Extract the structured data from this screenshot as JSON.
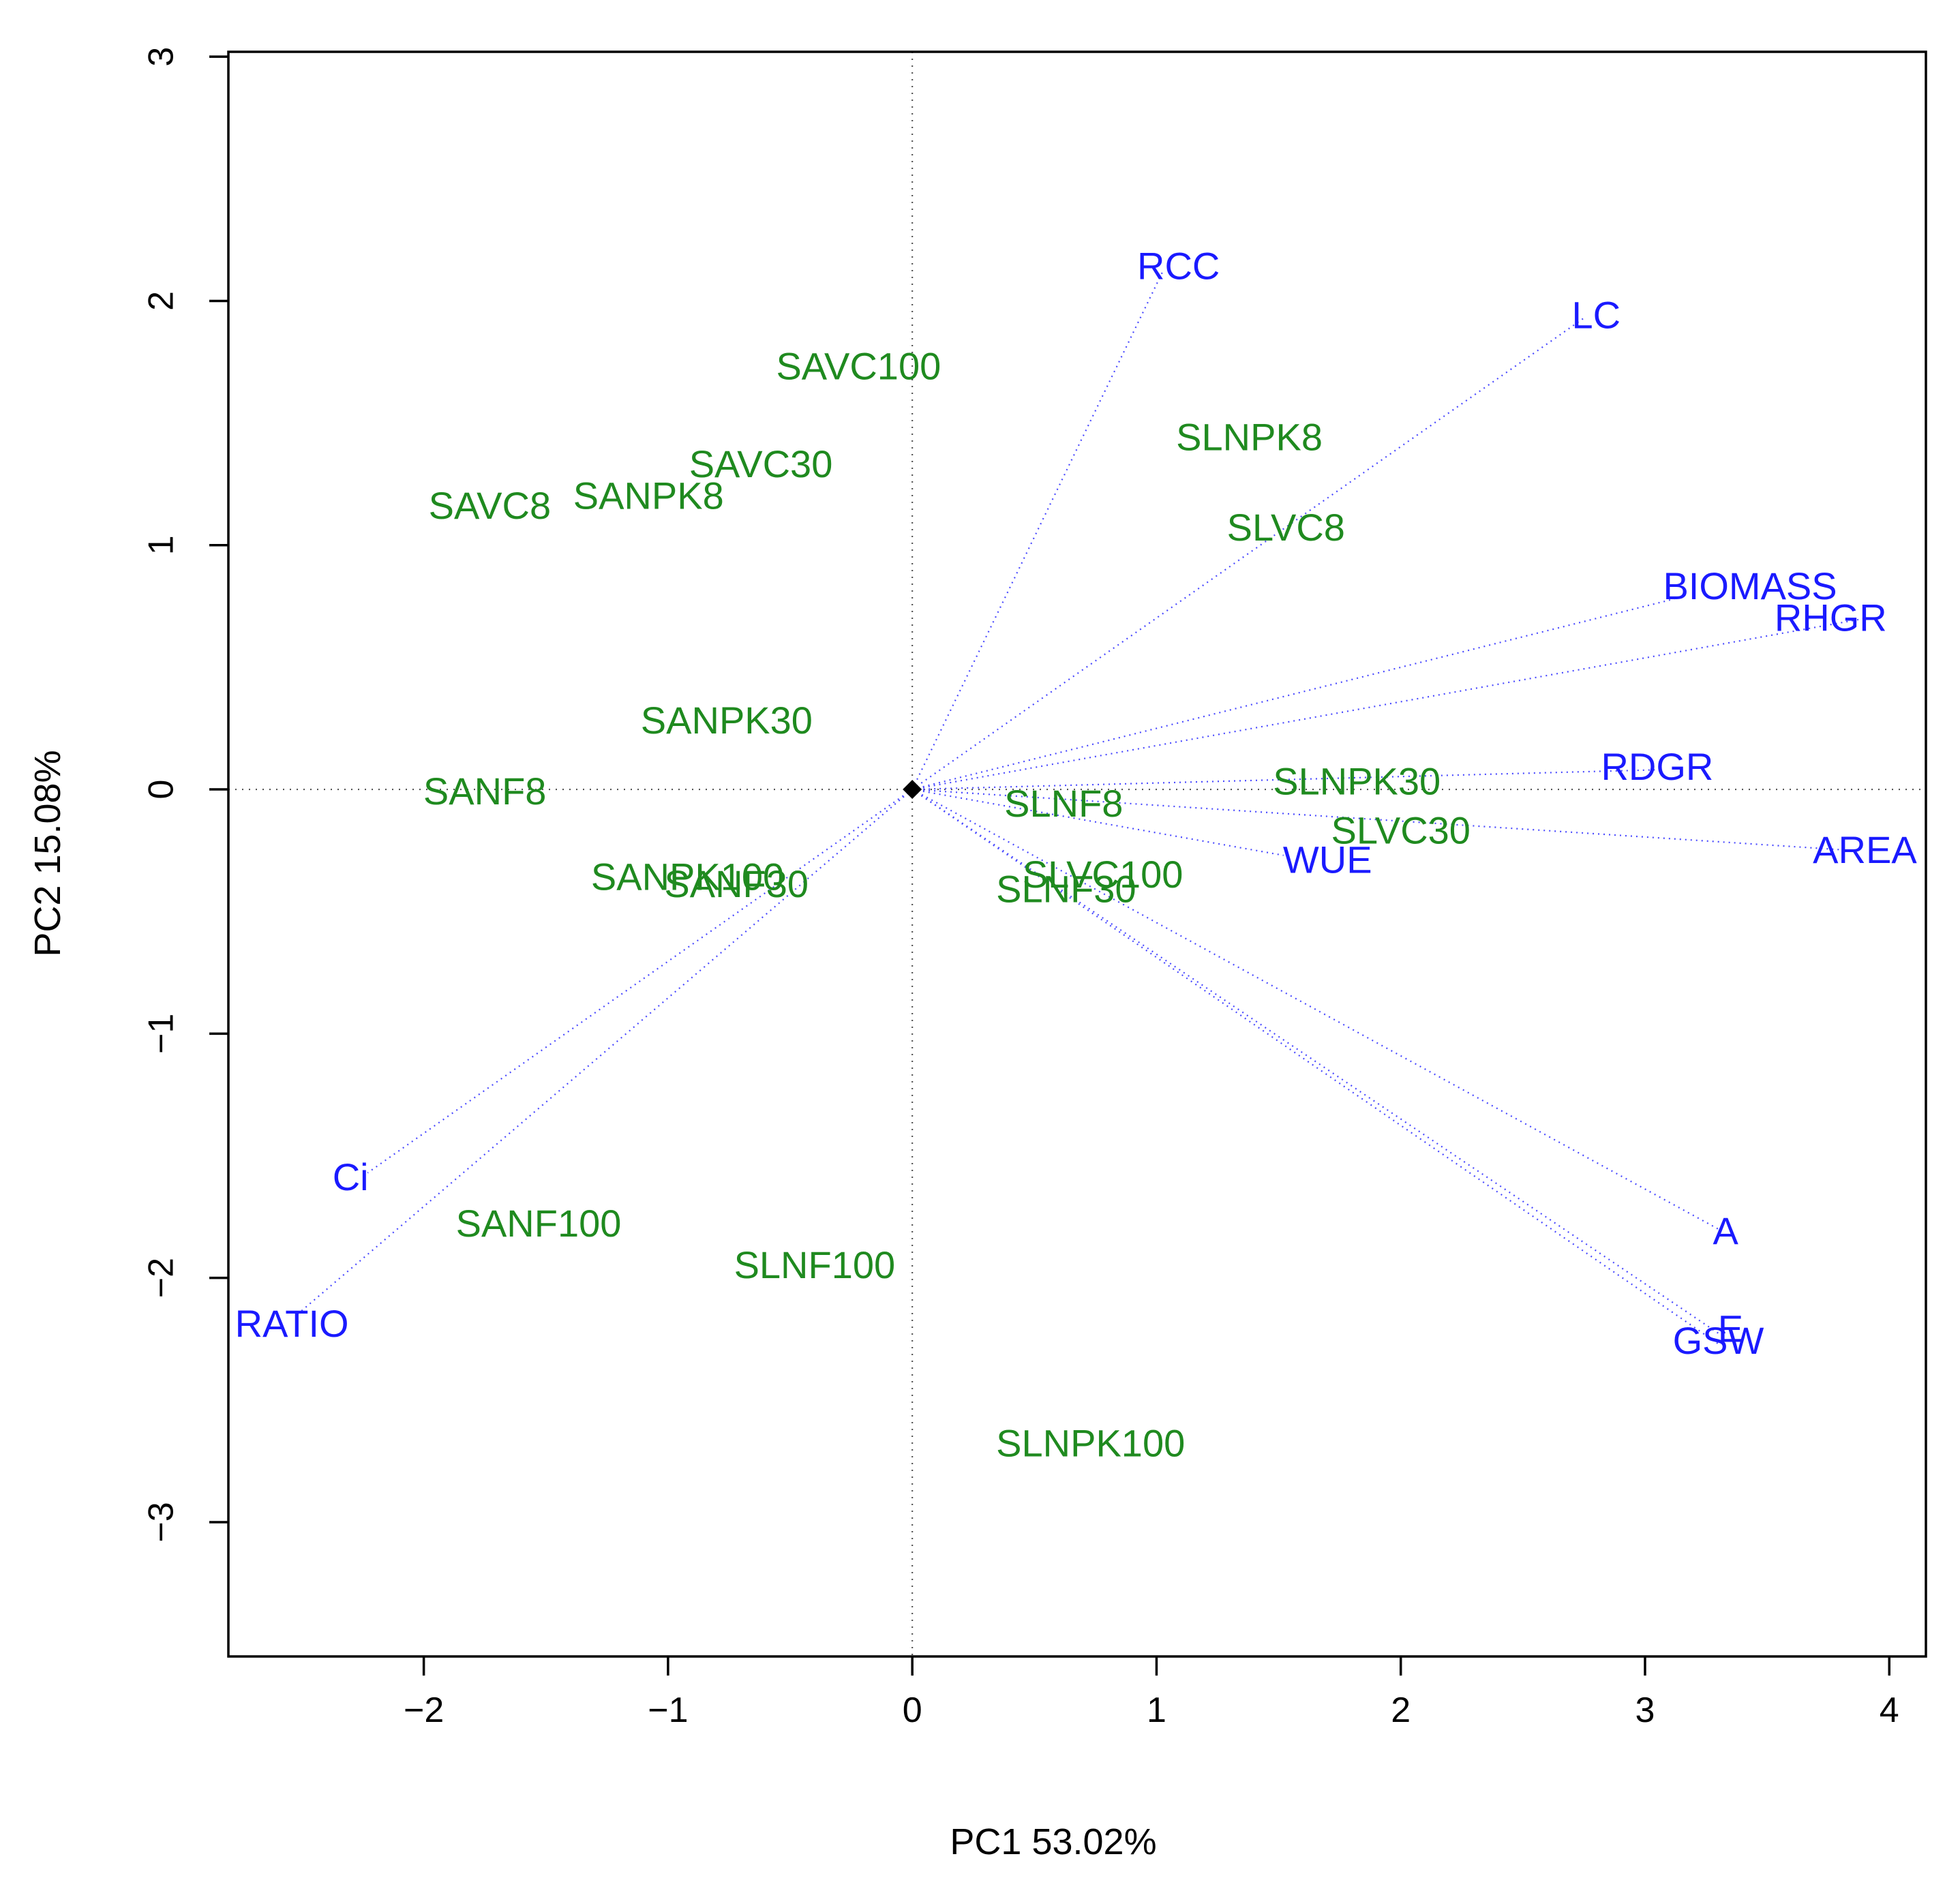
{
  "chart_data": {
    "type": "scatter",
    "subtype": "pca-biplot",
    "title": "",
    "xlabel": "PC1 53.02%",
    "ylabel": "PC2 15.08%",
    "xlim": [
      -2.8,
      4.15
    ],
    "ylim": [
      -3.55,
      3.02
    ],
    "xticks": [
      -2,
      -1,
      0,
      1,
      2,
      3,
      4
    ],
    "yticks": [
      -3,
      -2,
      -1,
      0,
      1,
      2,
      3
    ],
    "reference_lines": {
      "x": 0,
      "y": 0,
      "style": "dotted"
    },
    "origin_marker": {
      "x": 0,
      "y": 0,
      "shape": "diamond"
    },
    "colors": {
      "observations": "#1f8a1f",
      "variables": "#1a1aff",
      "vectors": "#4a4aff",
      "axes": "#000000"
    },
    "observations": [
      {
        "label": "SAVC100",
        "x": -0.22,
        "y": 1.72
      },
      {
        "label": "SAVC30",
        "x": -0.62,
        "y": 1.32
      },
      {
        "label": "SAVC8",
        "x": -1.73,
        "y": 1.15
      },
      {
        "label": "SANPK8",
        "x": -1.08,
        "y": 1.19
      },
      {
        "label": "SANPK30",
        "x": -0.76,
        "y": 0.27
      },
      {
        "label": "SANF8",
        "x": -1.75,
        "y": -0.02
      },
      {
        "label": "SANPK100",
        "x": -0.92,
        "y": -0.37
      },
      {
        "label": "SANF30",
        "x": -0.72,
        "y": -0.4
      },
      {
        "label": "SANF100",
        "x": -1.53,
        "y": -1.79
      },
      {
        "label": "SLNF100",
        "x": -0.4,
        "y": -1.96
      },
      {
        "label": "SLNPK100",
        "x": 0.73,
        "y": -2.69
      },
      {
        "label": "SLNPK8",
        "x": 1.38,
        "y": 1.43
      },
      {
        "label": "SLVC8",
        "x": 1.53,
        "y": 1.06
      },
      {
        "label": "SLNF8",
        "x": 0.62,
        "y": -0.07
      },
      {
        "label": "SLNPK30",
        "x": 1.82,
        "y": 0.02
      },
      {
        "label": "SLVC30",
        "x": 2.0,
        "y": -0.18
      },
      {
        "label": "SLVC100",
        "x": 0.78,
        "y": -0.36
      },
      {
        "label": "SLNF30",
        "x": 0.63,
        "y": -0.42
      }
    ],
    "variables": [
      {
        "label": "RCC",
        "x": 1.03,
        "y": 2.13
      },
      {
        "label": "LC",
        "x": 2.75,
        "y": 1.93
      },
      {
        "label": "BIOMASS",
        "x": 3.12,
        "y": 0.78
      },
      {
        "label": "RHGR",
        "x": 3.9,
        "y": 0.7
      },
      {
        "label": "RDGR",
        "x": 3.04,
        "y": 0.08
      },
      {
        "label": "AREA",
        "x": 3.85,
        "y": -0.25
      },
      {
        "label": "WUE",
        "x": 1.52,
        "y": -0.27
      },
      {
        "label": "A",
        "x": 3.3,
        "y": -1.8
      },
      {
        "label": "E",
        "x": 3.32,
        "y": -2.24
      },
      {
        "label": "GSW",
        "x": 3.3,
        "y": -2.27
      },
      {
        "label": "Ci",
        "x": -2.23,
        "y": -1.57
      },
      {
        "label": "RATIO",
        "x": -2.53,
        "y": -2.16
      }
    ],
    "variable_label_points": [
      {
        "x": 1.09,
        "y": 2.13
      },
      {
        "x": 2.8,
        "y": 1.93
      },
      {
        "x": 3.43,
        "y": 0.82
      },
      {
        "x": 3.76,
        "y": 0.69
      },
      {
        "x": 3.05,
        "y": 0.08
      },
      {
        "x": 3.9,
        "y": -0.26
      },
      {
        "x": 1.7,
        "y": -0.3
      },
      {
        "x": 3.33,
        "y": -1.82
      },
      {
        "x": 3.35,
        "y": -2.22
      },
      {
        "x": 3.3,
        "y": -2.27
      },
      {
        "x": -2.3,
        "y": -1.6
      },
      {
        "x": -2.54,
        "y": -2.2
      }
    ]
  }
}
